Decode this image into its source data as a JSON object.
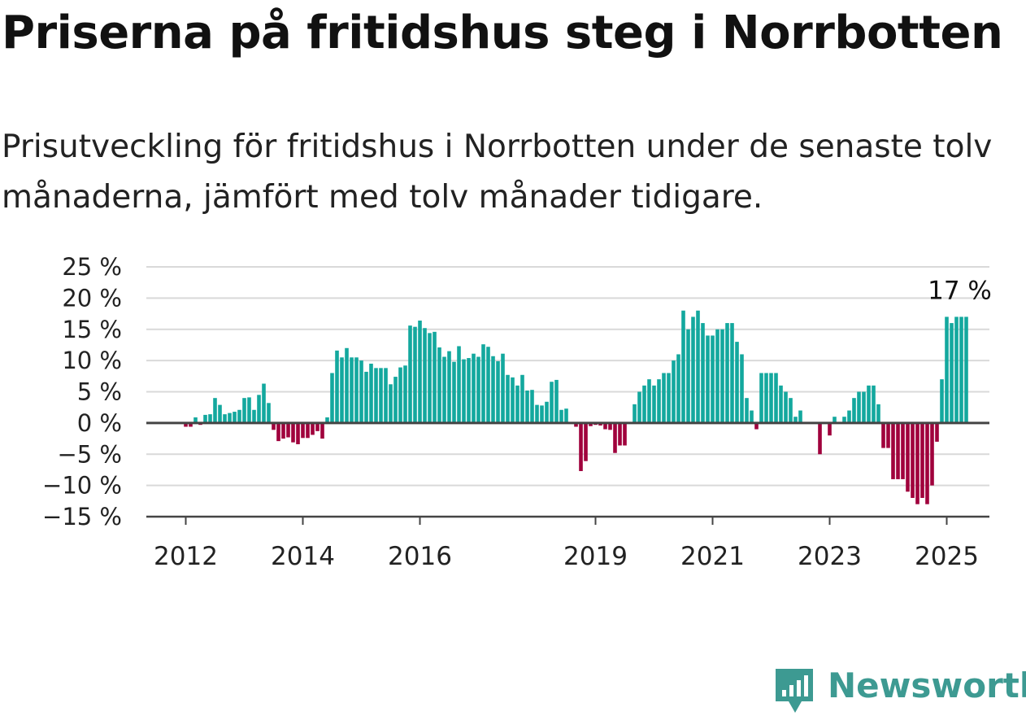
{
  "title": "Priserna på fritidshus steg i Norrbotten",
  "subtitle": "Prisutveckling för fritidshus i Norrbotten under de senaste tolv månaderna, jämfört med tolv månader tidigare.",
  "brand": {
    "name": "Newsworthy",
    "icon": "newsworthy-logo-icon",
    "color": "#3d9a92"
  },
  "colors": {
    "positive": "#13a89e",
    "negative": "#a0003c",
    "zero_line": "#444444",
    "grid": "#d9d9d9"
  },
  "chart_data": {
    "type": "bar",
    "title": "",
    "xlabel": "",
    "ylabel": "",
    "ylim": [
      -15,
      25
    ],
    "y_ticks": [
      -15,
      -10,
      -5,
      0,
      5,
      10,
      15,
      20,
      25
    ],
    "y_tick_labels": [
      "−15 %",
      "−10 %",
      "−5 %",
      "0 %",
      "5 %",
      "10 %",
      "15 %",
      "20 %",
      "25 %"
    ],
    "x_ticks": [
      {
        "label": "2012",
        "index": 0
      },
      {
        "label": "2014",
        "index": 24
      },
      {
        "label": "2016",
        "index": 48
      },
      {
        "label": "2019",
        "index": 84
      },
      {
        "label": "2021",
        "index": 108
      },
      {
        "label": "2023",
        "index": 132
      },
      {
        "label": "2025",
        "index": 156
      }
    ],
    "annotation": {
      "text": "17 %",
      "index": 157,
      "value": 17
    },
    "grid": true,
    "legend": "none",
    "x_start": "2012-01",
    "values": [
      -0.6,
      -0.6,
      0.9,
      -0.3,
      1.3,
      1.4,
      4.0,
      2.9,
      1.4,
      1.6,
      1.8,
      2.1,
      4.0,
      4.1,
      2.1,
      4.5,
      6.3,
      3.2,
      -1.1,
      -2.9,
      -2.5,
      -2.3,
      -3.1,
      -3.4,
      -2.4,
      -2.4,
      -1.9,
      -1.3,
      -2.5,
      0.9,
      8.0,
      11.6,
      10.5,
      12.0,
      10.5,
      10.5,
      10.0,
      8.2,
      9.5,
      8.8,
      8.8,
      8.8,
      6.2,
      7.4,
      8.9,
      9.2,
      15.6,
      15.4,
      16.4,
      15.2,
      14.4,
      14.6,
      12.1,
      10.6,
      11.5,
      9.8,
      12.3,
      10.2,
      10.4,
      11.1,
      10.6,
      12.6,
      12.2,
      10.7,
      9.9,
      11.1,
      7.7,
      7.3,
      6.0,
      7.7,
      5.2,
      5.3,
      2.9,
      2.8,
      3.4,
      6.6,
      6.9,
      2.1,
      2.3,
      0.0,
      -0.6,
      -7.7,
      -6.1,
      -0.5,
      -0.3,
      -0.4,
      -1.0,
      -1.1,
      -4.8,
      -3.6,
      -3.6,
      0.0,
      3.0,
      5.0,
      6.0,
      7.0,
      6.0,
      7.0,
      8.0,
      8.0,
      10.0,
      11.0,
      18.0,
      15.0,
      17.0,
      18.0,
      16.0,
      14.0,
      14.0,
      15.0,
      15.0,
      16.0,
      16.0,
      13.0,
      11.0,
      4.0,
      2.0,
      -1.0,
      8.0,
      8.0,
      8.0,
      8.0,
      6.0,
      5.0,
      4.0,
      1.0,
      2.0,
      0.0,
      0.0,
      0.0,
      -5.0,
      0.0,
      -2.0,
      1.0,
      0.0,
      1.0,
      2.0,
      4.0,
      5.0,
      5.0,
      6.0,
      6.0,
      3.0,
      -4.0,
      -4.0,
      -9.0,
      -9.0,
      -9.0,
      -11.0,
      -12.0,
      -13.0,
      -12.0,
      -13.0,
      -10.0,
      -3.0,
      7.0,
      17.0,
      16.0,
      17.0,
      17.0,
      17.0
    ]
  }
}
